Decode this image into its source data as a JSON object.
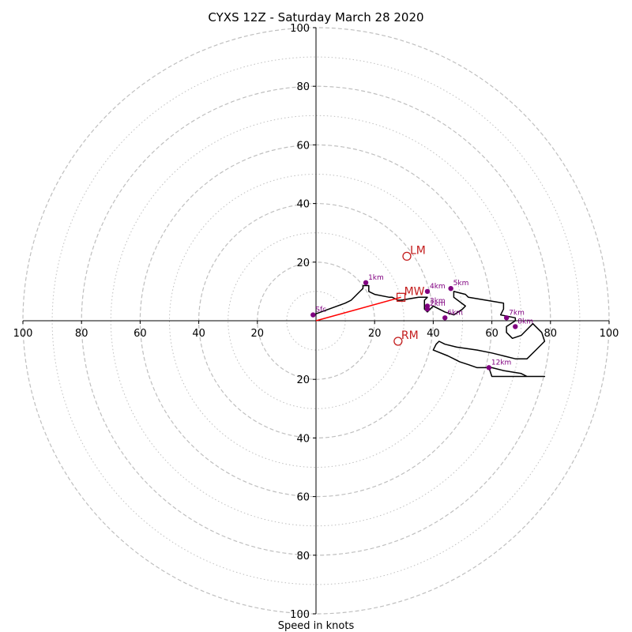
{
  "chart_data": {
    "type": "line",
    "title": "CYXS 12Z - Saturday March 28 2020",
    "xlabel": "Speed in knots",
    "ylabel": "",
    "xlim": [
      -100,
      100
    ],
    "ylim": [
      -100,
      100
    ],
    "x_ticks": [
      -100,
      -80,
      -60,
      -40,
      -20,
      20,
      40,
      60,
      80,
      100
    ],
    "x_tick_labels": [
      "100",
      "80",
      "60",
      "40",
      "20",
      "20",
      "40",
      "60",
      "80",
      "100"
    ],
    "y_ticks": [
      100,
      80,
      60,
      40,
      20,
      -20,
      -40,
      -60,
      -80,
      -100
    ],
    "y_tick_labels": [
      "100",
      "80",
      "60",
      "40",
      "20",
      "20",
      "40",
      "60",
      "80",
      "100"
    ],
    "rings_dashed": [
      20,
      40,
      60,
      80,
      100
    ],
    "rings_dotted": [
      10,
      30,
      50,
      70,
      90
    ],
    "grid": true,
    "colors": {
      "hodograph": "#000000",
      "marker": "#800080",
      "marker_label": "#800080",
      "storm_motion": "#c41e1e",
      "shear_vector": "#ff0000",
      "ring": "#bfbfbf",
      "axis": "#000000"
    },
    "hodograph": {
      "x": [
        -1,
        10,
        12,
        15,
        16,
        16,
        18,
        18,
        20,
        25,
        26,
        28,
        29,
        35,
        36,
        38,
        37,
        37,
        37,
        38,
        39,
        40,
        44,
        47,
        50,
        51,
        47,
        47,
        51,
        52,
        58,
        64,
        64,
        63,
        68,
        68,
        65,
        65,
        67,
        70,
        72,
        74,
        77,
        78,
        75,
        72,
        68,
        64,
        60,
        55,
        48,
        44,
        42,
        41,
        40,
        45,
        47,
        49,
        52,
        55,
        58,
        60,
        64,
        70,
        72,
        75,
        74,
        76,
        78,
        75,
        72,
        70,
        68,
        66,
        64,
        60,
        59
      ],
      "y": [
        2,
        6,
        7,
        10,
        11,
        12,
        12,
        10,
        9,
        8,
        8,
        7,
        7,
        8,
        8,
        8,
        7,
        5,
        4,
        3,
        4,
        5,
        3,
        2,
        4,
        5,
        8,
        10,
        9,
        8,
        7,
        6,
        4,
        2,
        1,
        0,
        -2,
        -4,
        -6,
        -5,
        -3,
        -1,
        -4,
        -7,
        -10,
        -13,
        -13,
        -12,
        -11,
        -10,
        -9,
        -8,
        -7,
        -8,
        -10,
        -12,
        -13,
        -14,
        -15,
        -16,
        -16,
        -16,
        -17,
        -18,
        -19,
        -19,
        -19,
        -19,
        -19,
        -19,
        -19,
        -19,
        -19,
        -19,
        -19,
        -19,
        -16
      ]
    },
    "height_markers": [
      {
        "label": "Sfc",
        "x": -1,
        "y": 2
      },
      {
        "label": "1km",
        "x": 17,
        "y": 13
      },
      {
        "label": "2km",
        "x": 38,
        "y": 4
      },
      {
        "label": "3km",
        "x": 38,
        "y": 5
      },
      {
        "label": "4km",
        "x": 38,
        "y": 10
      },
      {
        "label": "5km",
        "x": 46,
        "y": 11
      },
      {
        "label": "6km",
        "x": 44,
        "y": 1
      },
      {
        "label": "7km",
        "x": 65,
        "y": 1
      },
      {
        "label": "8km",
        "x": 68,
        "y": -2
      },
      {
        "label": "12km",
        "x": 59,
        "y": -16
      }
    ],
    "storm_motions": [
      {
        "label": "LM",
        "x": 31,
        "y": 22,
        "marker": "circle"
      },
      {
        "label": "MW",
        "x": 29,
        "y": 8,
        "marker": "square"
      },
      {
        "label": "RM",
        "x": 28,
        "y": -7,
        "marker": "circle"
      }
    ],
    "shear_vector": {
      "x0": 0,
      "y0": 0,
      "x1": 29,
      "y1": 8
    }
  }
}
